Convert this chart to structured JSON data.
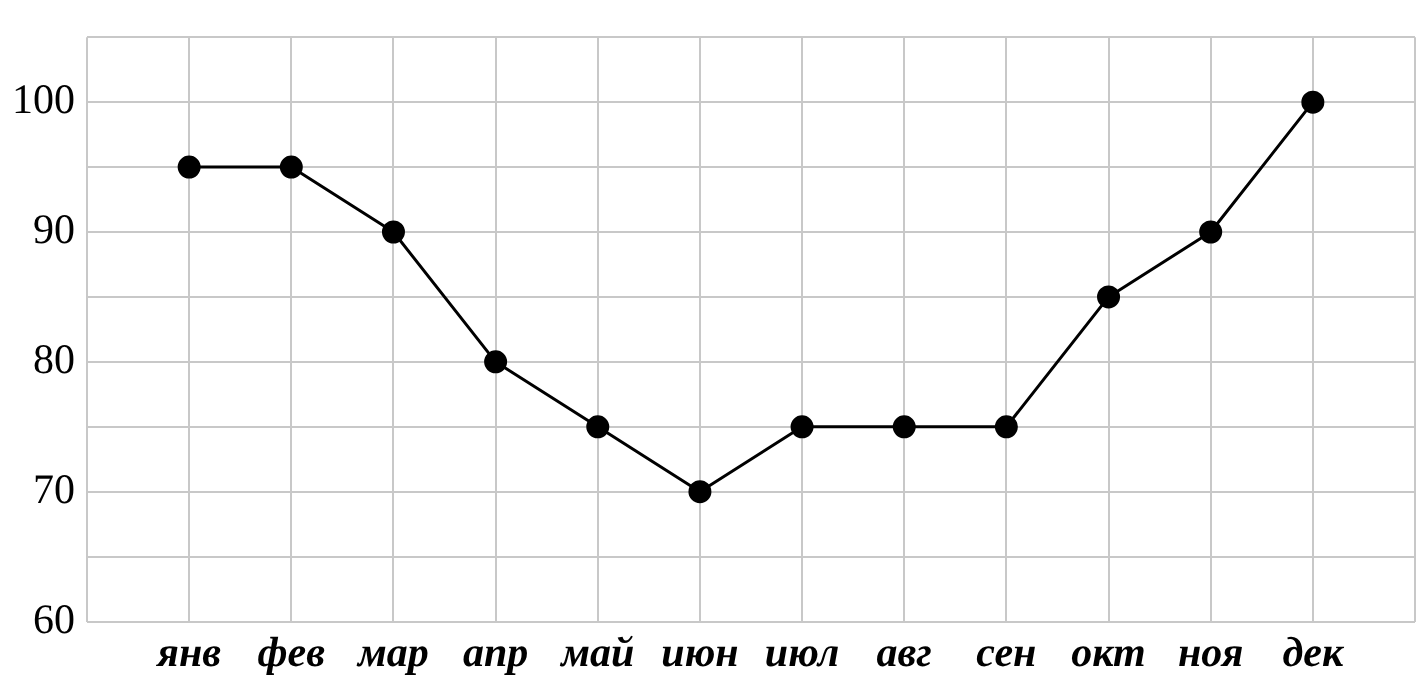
{
  "chart_data": {
    "type": "line",
    "categories": [
      "янв",
      "фев",
      "мар",
      "апр",
      "май",
      "июн",
      "июл",
      "авг",
      "сен",
      "окт",
      "ноя",
      "дек"
    ],
    "series": [
      {
        "color": "#000000",
        "values": [
          95,
          95,
          90,
          80,
          75,
          70,
          75,
          75,
          75,
          85,
          90,
          100
        ]
      }
    ],
    "ylim": [
      60,
      105
    ],
    "yticks": [
      60,
      {
        "value": 65,
        "label": null
      },
      70,
      {
        "value": 75,
        "label": null
      },
      80,
      {
        "value": 85,
        "label": null
      },
      90,
      {
        "value": 95,
        "label": null
      },
      100,
      {
        "value": 105,
        "label": null
      }
    ],
    "grid": true,
    "marker": "circle",
    "line_style": "solid",
    "legend": false
  }
}
